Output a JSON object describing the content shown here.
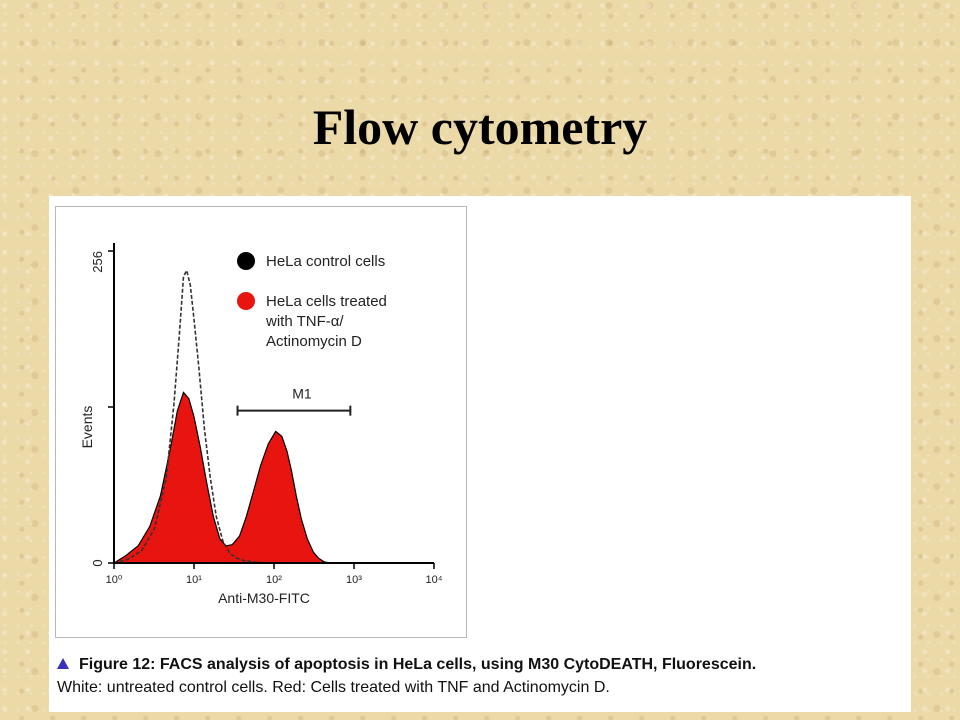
{
  "slide": {
    "title": "Flow cytometry"
  },
  "caption": {
    "line1": "Figure 12: FACS analysis of apoptosis in HeLa cells, using M30 CytoDEATH, Fluorescein.",
    "line2": "White: untreated control cells. Red: Cells treated with TNF and Actinomycin D."
  },
  "chart_data": {
    "type": "area",
    "xlabel": "Anti-M30-FITC",
    "ylabel": "Events",
    "xscale": "log",
    "xlim": [
      1,
      10000
    ],
    "ylim": [
      0,
      256
    ],
    "x_tick_labels": [
      "10⁰",
      "10¹",
      "10²",
      "10³",
      "10⁴"
    ],
    "x_tick_values": [
      1,
      10,
      100,
      1000,
      10000
    ],
    "y_tick_labels": [
      "0",
      "256"
    ],
    "y_tick_values": [
      0,
      256
    ],
    "legend_position": "top-right",
    "colors": {
      "control": "#000000",
      "treated": "#e8140f"
    },
    "series": [
      {
        "name": "HeLa control cells",
        "style": "dashed outline",
        "x": [
          1.0,
          1.5,
          2.2,
          3.2,
          4.5,
          5.6,
          6.6,
          7.4,
          8.1,
          9.0,
          10.0,
          11.5,
          13.5,
          16,
          19,
          23,
          28,
          34,
          42,
          55,
          75,
          100
        ],
        "y": [
          0,
          3,
          10,
          28,
          70,
          130,
          190,
          235,
          240,
          228,
          200,
          160,
          110,
          70,
          38,
          18,
          8,
          4,
          2,
          1,
          0,
          0
        ]
      },
      {
        "name": "HeLa cells treated with TNF-α/ Actinomycin D",
        "style": "filled",
        "x": [
          1.0,
          1.4,
          2.0,
          2.8,
          3.8,
          5.0,
          6.2,
          7.4,
          8.6,
          10.0,
          12.0,
          14.5,
          17.5,
          21,
          25,
          30,
          37,
          45,
          55,
          68,
          85,
          105,
          125,
          145,
          165,
          190,
          220,
          260,
          310,
          360,
          420,
          500
        ],
        "y": [
          0,
          6,
          14,
          30,
          55,
          92,
          125,
          140,
          135,
          120,
          95,
          65,
          38,
          20,
          14,
          15,
          22,
          38,
          58,
          80,
          98,
          108,
          104,
          92,
          76,
          55,
          36,
          20,
          9,
          4,
          1,
          0
        ]
      }
    ],
    "annotations": [
      {
        "label": "M1",
        "type": "range marker",
        "x_start": 35,
        "x_end": 900,
        "y": 125
      }
    ],
    "legend": [
      {
        "label": "HeLa control cells",
        "color": "#000000"
      },
      {
        "label": "HeLa cells treated",
        "color": "#e8140f",
        "lines": [
          "HeLa cells treated",
          "with TNF-α/",
          "Actinomycin D"
        ]
      }
    ]
  }
}
